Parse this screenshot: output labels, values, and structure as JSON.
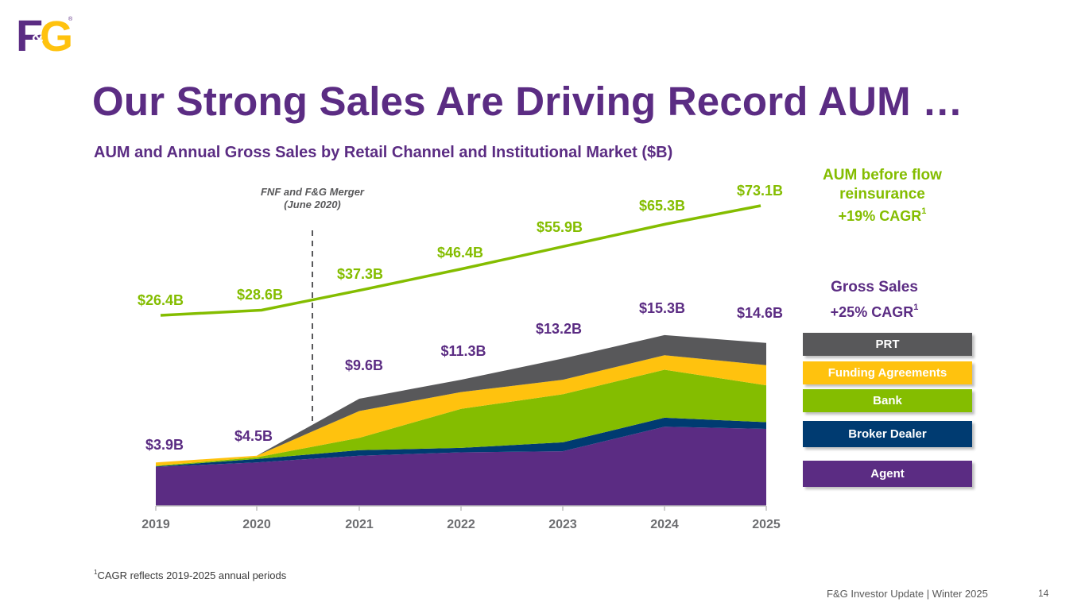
{
  "logo": {
    "text_f": "F",
    "text_amp": "&",
    "text_g": "G",
    "reg": "®"
  },
  "title": "Our Strong Sales Are Driving Record AUM …",
  "subtitle": "AUM and Annual Gross Sales by Retail Channel and Institutional Market ($B)",
  "side": {
    "aum_heading_line1": "AUM before flow",
    "aum_heading_line2": "reinsurance",
    "aum_cagr": "+19% CAGR",
    "gross_heading": "Gross Sales",
    "gross_cagr": "+25% CAGR",
    "sup": "1"
  },
  "legend": [
    {
      "label": "PRT",
      "color": "#58585a"
    },
    {
      "label": "Funding Agreements",
      "color": "#ffc20e"
    },
    {
      "label": "Bank",
      "color": "#84bd00"
    },
    {
      "label": "Broker Dealer",
      "color": "#003b71"
    },
    {
      "label": "Agent",
      "color": "#5b2c83"
    }
  ],
  "footnote": {
    "sup": "1",
    "text": "CAGR reflects 2019-2025 annual periods"
  },
  "footer": "F&G Investor Update |  Winter 2025",
  "page_number": "14",
  "chart_data": {
    "type": "area",
    "title": "AUM and Annual Gross Sales by Retail Channel and Institutional Market ($B)",
    "categories": [
      "2019",
      "2020",
      "2021",
      "2022",
      "2023",
      "2024",
      "2025"
    ],
    "ylim": [
      0,
      16.5
    ],
    "series": [
      {
        "name": "Agent",
        "color": "#5b2c83",
        "values": [
          3.5,
          3.9,
          4.5,
          4.8,
          4.9,
          7.1,
          6.9
        ]
      },
      {
        "name": "Broker Dealer",
        "color": "#003b71",
        "values": [
          0.05,
          0.3,
          0.5,
          0.4,
          0.8,
          0.8,
          0.6
        ]
      },
      {
        "name": "Bank",
        "color": "#84bd00",
        "values": [
          0.05,
          0.15,
          1.1,
          3.5,
          4.3,
          4.3,
          3.3
        ]
      },
      {
        "name": "Funding Agreements",
        "color": "#ffc20e",
        "values": [
          0.3,
          0.15,
          2.4,
          1.5,
          1.3,
          1.3,
          1.8
        ]
      },
      {
        "name": "PRT",
        "color": "#58585a",
        "values": [
          0.0,
          0.0,
          1.1,
          1.1,
          1.9,
          1.8,
          2.0
        ]
      }
    ],
    "gross_sales_labels": [
      "$3.9B",
      "$4.5B",
      "$9.6B",
      "$11.3B",
      "$13.2B",
      "$15.3B",
      "$14.6B"
    ],
    "aum_line": {
      "name": "AUM before flow reinsurance",
      "color": "#84bd00",
      "values": [
        26.4,
        28.6,
        37.3,
        46.4,
        55.9,
        65.3,
        73.1
      ],
      "labels": [
        "$26.4B",
        "$28.6B",
        "$37.3B",
        "$46.4B",
        "$55.9B",
        "$65.3B",
        "$73.1B"
      ]
    },
    "annotation": {
      "line1": "FNF and F&G Merger",
      "line2": "(June 2020)",
      "position": "between 2020 and 2021"
    }
  }
}
